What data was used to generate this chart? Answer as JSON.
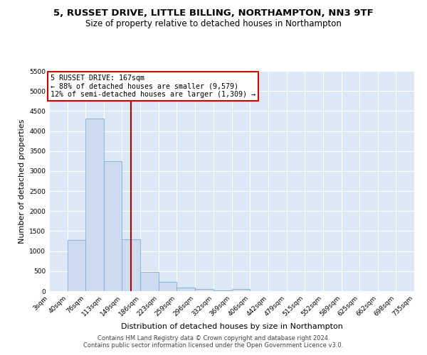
{
  "title": "5, RUSSET DRIVE, LITTLE BILLING, NORTHAMPTON, NN3 9TF",
  "subtitle": "Size of property relative to detached houses in Northampton",
  "xlabel": "Distribution of detached houses by size in Northampton",
  "ylabel": "Number of detached properties",
  "bin_labels": [
    "3sqm",
    "40sqm",
    "76sqm",
    "113sqm",
    "149sqm",
    "186sqm",
    "223sqm",
    "259sqm",
    "296sqm",
    "332sqm",
    "369sqm",
    "406sqm",
    "442sqm",
    "479sqm",
    "515sqm",
    "552sqm",
    "589sqm",
    "625sqm",
    "662sqm",
    "698sqm",
    "735sqm"
  ],
  "bar_heights": [
    0,
    1270,
    4310,
    3250,
    1290,
    480,
    235,
    95,
    55,
    25,
    55,
    0,
    0,
    0,
    0,
    0,
    0,
    0,
    0,
    0
  ],
  "bar_color": "#ccdcee",
  "bar_edge_color": "#7aaed6",
  "vline_x": 167,
  "vline_color": "#aa0000",
  "annotation_title": "5 RUSSET DRIVE: 167sqm",
  "annotation_line1": "← 88% of detached houses are smaller (9,579)",
  "annotation_line2": "12% of semi-detached houses are larger (1,309) →",
  "annotation_box_color": "#ffffff",
  "annotation_box_edge": "#cc0000",
  "ylim": [
    0,
    5500
  ],
  "yticks": [
    0,
    500,
    1000,
    1500,
    2000,
    2500,
    3000,
    3500,
    4000,
    4500,
    5000,
    5500
  ],
  "bin_edges": [
    3,
    40,
    76,
    113,
    149,
    186,
    223,
    259,
    296,
    332,
    369,
    406,
    442,
    479,
    515,
    552,
    589,
    625,
    662,
    698,
    735
  ],
  "footer1": "Contains HM Land Registry data © Crown copyright and database right 2024.",
  "footer2": "Contains public sector information licensed under the Open Government Licence v3.0.",
  "title_fontsize": 9.5,
  "subtitle_fontsize": 8.5,
  "axis_label_fontsize": 8,
  "tick_fontsize": 6.5,
  "footer_fontsize": 6,
  "fig_bg": "#ffffff",
  "plot_bg": "#dce8f5"
}
